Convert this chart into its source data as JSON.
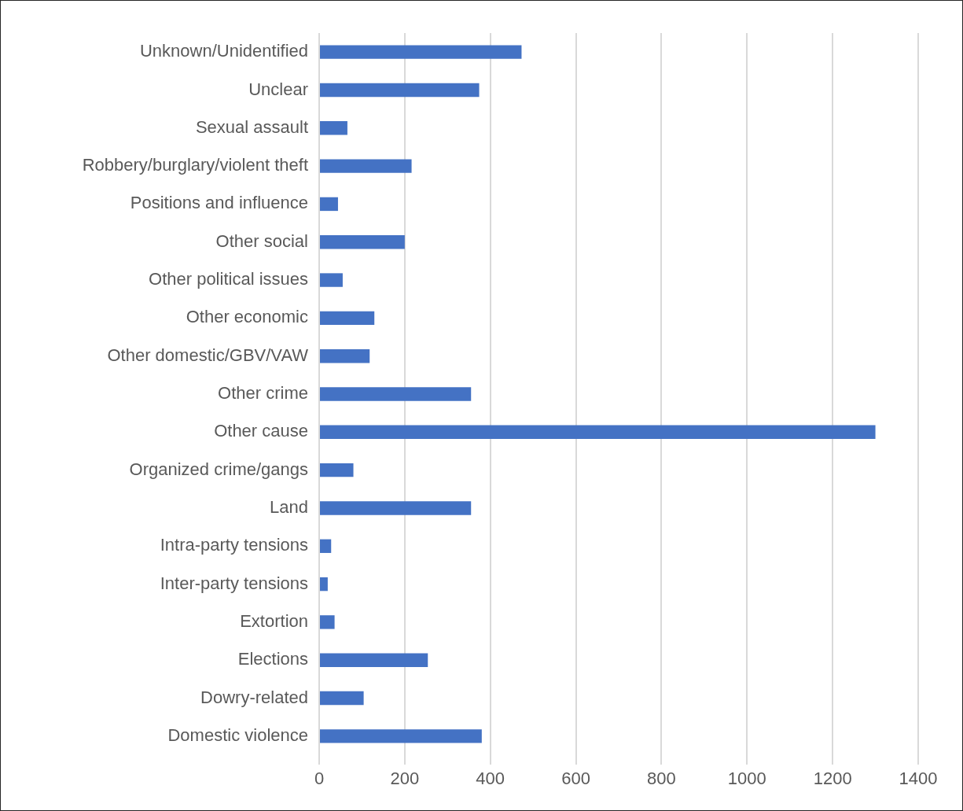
{
  "chart_data": {
    "type": "bar",
    "orientation": "horizontal",
    "categories": [
      "Unknown/Unidentified",
      "Unclear",
      "Sexual assault",
      "Robbery/burglary/violent theft",
      "Positions and influence",
      "Other social",
      "Other political issues",
      "Other economic",
      "Other domestic/GBV/VAW",
      "Other crime",
      "Other cause",
      "Organized crime/gangs",
      "Land",
      "Intra-party tensions",
      "Inter-party tensions",
      "Extortion",
      "Elections",
      "Dowry-related",
      "Domestic violence"
    ],
    "values": [
      473,
      374,
      66,
      216,
      44,
      200,
      55,
      129,
      118,
      355,
      1300,
      80,
      355,
      28,
      20,
      36,
      254,
      104,
      380
    ],
    "color": "#4472c4",
    "xlim": [
      0,
      1400
    ],
    "xticks": [
      0,
      200,
      400,
      600,
      800,
      1000,
      1200,
      1400
    ],
    "grid": "x"
  }
}
